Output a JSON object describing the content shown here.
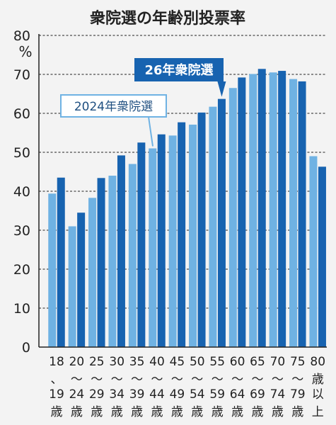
{
  "chart_data": {
    "type": "bar",
    "title": "衆院選の年齢別投票率",
    "ylabel": "%",
    "ylim": [
      0,
      80
    ],
    "yticks": [
      0,
      10,
      20,
      30,
      40,
      50,
      60,
      70,
      80
    ],
    "grid": true,
    "legend_placement": "callouts near 40–44 and 55–59 groups",
    "categories_top": [
      "18",
      "20",
      "25",
      "30",
      "35",
      "40",
      "45",
      "50",
      "55",
      "60",
      "65",
      "70",
      "75",
      "80"
    ],
    "categories_mid": [
      "、",
      "〜",
      "〜",
      "〜",
      "〜",
      "〜",
      "〜",
      "〜",
      "〜",
      "〜",
      "〜",
      "〜",
      "〜",
      "歳"
    ],
    "categories_bot1": [
      "19",
      "24",
      "29",
      "34",
      "39",
      "44",
      "49",
      "54",
      "59",
      "64",
      "69",
      "74",
      "79",
      "以"
    ],
    "categories_bot2": [
      "歳",
      "歳",
      "歳",
      "歳",
      "歳",
      "歳",
      "歳",
      "歳",
      "歳",
      "歳",
      "歳",
      "歳",
      "歳",
      "上"
    ],
    "series": [
      {
        "name": "2024年衆院選",
        "color": "#6fb2e3",
        "values": [
          39.4,
          31.0,
          38.3,
          44.0,
          47.0,
          51.0,
          54.3,
          57.1,
          61.7,
          66.5,
          70.1,
          70.5,
          68.8,
          49.0
        ]
      },
      {
        "name": "26年衆院選",
        "color": "#1763b0",
        "values": [
          43.5,
          34.5,
          43.4,
          49.2,
          52.5,
          54.6,
          57.7,
          60.2,
          63.7,
          69.2,
          71.4,
          70.9,
          68.2,
          46.3
        ]
      }
    ]
  }
}
